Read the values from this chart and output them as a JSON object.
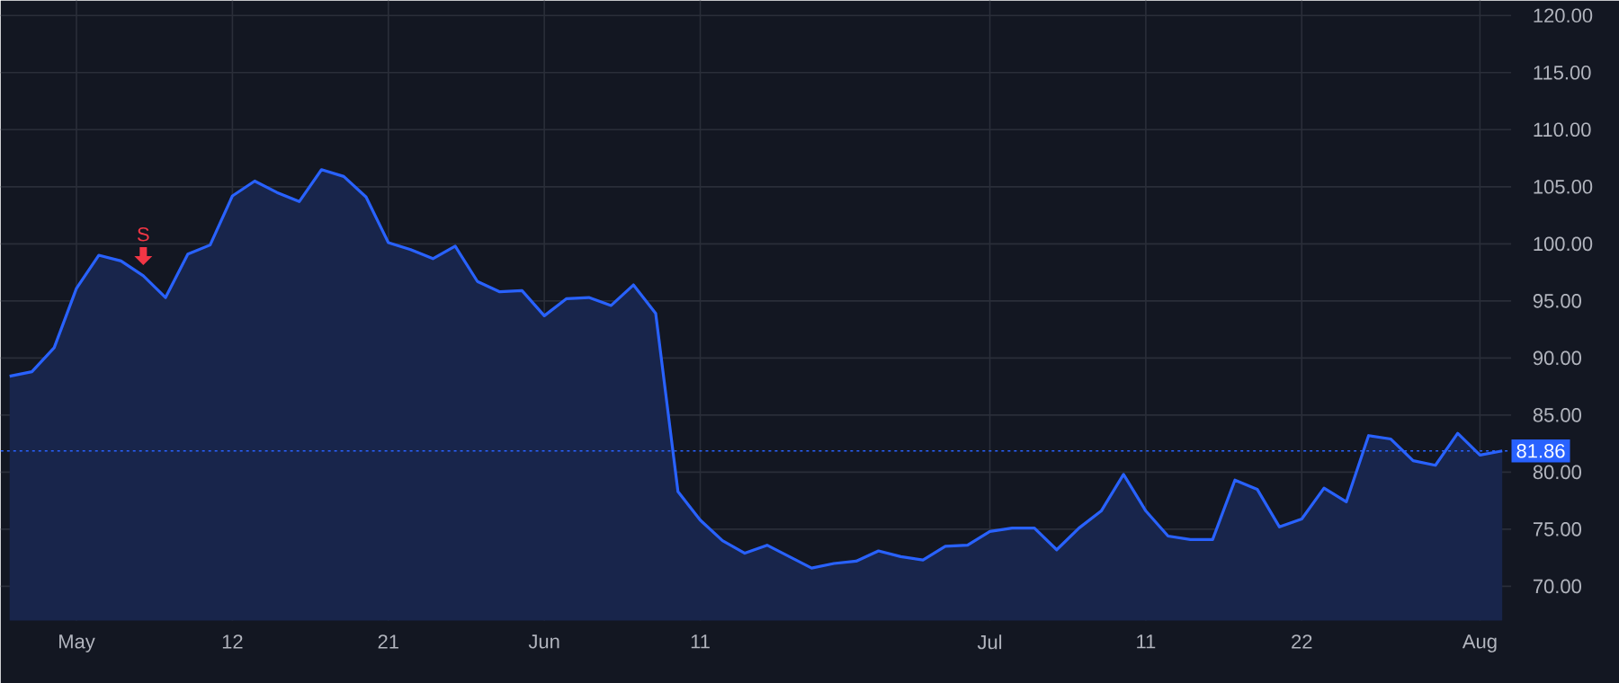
{
  "chart_data": {
    "type": "area",
    "categories": [
      null,
      null,
      null,
      "May",
      null,
      null,
      null,
      null,
      null,
      null,
      "12",
      null,
      null,
      null,
      null,
      null,
      null,
      "21",
      null,
      null,
      null,
      null,
      null,
      null,
      "Jun",
      null,
      null,
      null,
      null,
      null,
      null,
      "11",
      null,
      null,
      null,
      null,
      null,
      null,
      null,
      null,
      null,
      null,
      null,
      null,
      "Jul",
      null,
      null,
      null,
      null,
      null,
      null,
      "11",
      null,
      null,
      null,
      null,
      null,
      null,
      "22",
      null,
      null,
      null,
      null,
      null,
      null,
      null,
      "Aug",
      null
    ],
    "series": [
      {
        "color": "#2962ff",
        "values": [
          88.4,
          88.8,
          90.9,
          96.1,
          99.0,
          98.5,
          97.2,
          95.3,
          99.1,
          99.9,
          104.2,
          105.5,
          104.5,
          103.7,
          106.5,
          105.9,
          104.1,
          100.1,
          99.5,
          98.7,
          99.8,
          96.7,
          95.8,
          95.9,
          93.7,
          95.2,
          95.3,
          94.6,
          96.4,
          93.9,
          78.3,
          75.8,
          74.0,
          72.9,
          73.6,
          72.6,
          71.6,
          72.0,
          72.2,
          73.1,
          72.6,
          72.3,
          73.5,
          73.6,
          74.8,
          75.1,
          75.1,
          73.2,
          75.1,
          76.6,
          79.8,
          76.6,
          74.4,
          74.1,
          74.1,
          79.3,
          78.5,
          75.2,
          75.9,
          78.6,
          77.4,
          83.2,
          82.9,
          81.0,
          80.6,
          83.4,
          81.5,
          81.86
        ]
      }
    ],
    "ylim": [
      67,
      121.3
    ],
    "yticks": [
      {
        "value": 70,
        "label": "70.00"
      },
      {
        "value": 75,
        "label": "75.00"
      },
      {
        "value": 80,
        "label": "80.00"
      },
      {
        "value": 85,
        "label": "85.00"
      },
      {
        "value": 90,
        "label": "90.00"
      },
      {
        "value": 95,
        "label": "95.00"
      },
      {
        "value": 100,
        "label": "100.00"
      },
      {
        "value": 105,
        "label": "105.00"
      },
      {
        "value": 110,
        "label": "110.00"
      },
      {
        "value": 115,
        "label": "115.00"
      },
      {
        "value": 120,
        "label": "120.00"
      }
    ],
    "grid": true,
    "ref_lines": [
      {
        "axis": "y",
        "value": 81.86,
        "label": "81.86",
        "color": "#2962ff",
        "line_style": "dotted"
      }
    ],
    "annotations": [
      {
        "text": "S",
        "y": 97.2
      }
    ]
  }
}
